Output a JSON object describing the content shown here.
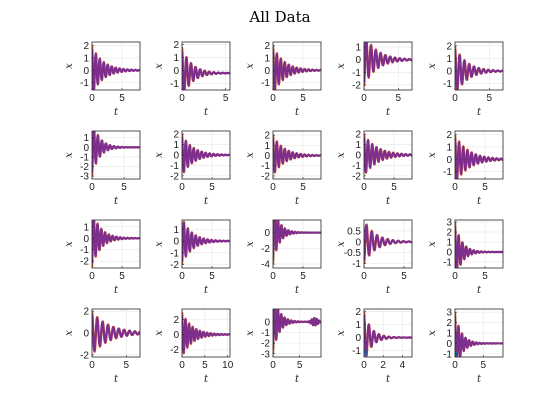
{
  "chart_data": {
    "type": "line",
    "title": "All Data",
    "layout": {
      "rows": 4,
      "cols": 5
    },
    "colors": {
      "series_a": "#D95319",
      "series_b": "#7E2F8E",
      "series_c": "#0072BD",
      "grid": "#e6e6e6",
      "axes": "#262626"
    },
    "grid": true,
    "series_names": [
      "",
      ""
    ],
    "panels": [
      {
        "xlabel": "t",
        "ylabel": "x",
        "xlim": [
          0,
          8
        ],
        "ylim": [
          -1.6,
          2.3
        ],
        "xticks": [
          0,
          5
        ],
        "yticks": [
          -1,
          0,
          1,
          2
        ],
        "y0": 2.0,
        "decay": 0.55,
        "freq": 9.5,
        "offset": 0.0
      },
      {
        "xlabel": "t",
        "ylabel": "x",
        "xlim": [
          0,
          5.5
        ],
        "ylim": [
          -1.5,
          2.2
        ],
        "xticks": [
          0,
          5
        ],
        "yticks": [
          -1,
          0,
          1,
          2
        ],
        "y0": 2.0,
        "decay": 0.9,
        "freq": 12.0,
        "offset": -0.2
      },
      {
        "xlabel": "t",
        "ylabel": "x",
        "xlim": [
          0,
          8
        ],
        "ylim": [
          -1.6,
          2.3
        ],
        "xticks": [
          0,
          5
        ],
        "yticks": [
          -1,
          0,
          1,
          2
        ],
        "y0": 2.0,
        "decay": 0.55,
        "freq": 9.5,
        "offset": 0.0
      },
      {
        "xlabel": "t",
        "ylabel": "x",
        "xlim": [
          0,
          7
        ],
        "ylim": [
          -2.4,
          1.4
        ],
        "xticks": [
          0,
          5
        ],
        "yticks": [
          -2,
          -1,
          0,
          1
        ],
        "y0": -2.1,
        "decay": 0.55,
        "freq": 9.0,
        "offset": 0.0
      },
      {
        "xlabel": "t",
        "ylabel": "x",
        "xlim": [
          0,
          7
        ],
        "ylim": [
          -1.5,
          2.3
        ],
        "xticks": [
          0,
          5
        ],
        "yticks": [
          -1,
          0,
          1,
          2
        ],
        "y0": 2.0,
        "decay": 0.6,
        "freq": 9.0,
        "offset": 0.0
      },
      {
        "xlabel": "t",
        "ylabel": "x",
        "xlim": [
          0,
          7.5
        ],
        "ylim": [
          -3.3,
          1.7
        ],
        "xticks": [
          0,
          5
        ],
        "yticks": [
          -3,
          -2,
          -1,
          0,
          1
        ],
        "y0": -3.0,
        "decay": 0.9,
        "freq": 10.0,
        "offset": 0.0
      },
      {
        "xlabel": "t",
        "ylabel": "x",
        "xlim": [
          0,
          8
        ],
        "ylim": [
          -2.3,
          2.3
        ],
        "xticks": [
          0,
          5
        ],
        "yticks": [
          -2,
          -1,
          0,
          1,
          2
        ],
        "y0": 2.0,
        "decay": 0.55,
        "freq": 9.5,
        "offset": 0.0
      },
      {
        "xlabel": "t",
        "ylabel": "x",
        "xlim": [
          0,
          8
        ],
        "ylim": [
          -2.3,
          2.4
        ],
        "xticks": [
          0,
          5
        ],
        "yticks": [
          -2,
          -1,
          0,
          1,
          2
        ],
        "y0": 2.0,
        "decay": 0.55,
        "freq": 9.5,
        "offset": 0.0
      },
      {
        "xlabel": "t",
        "ylabel": "x",
        "xlim": [
          0,
          8
        ],
        "ylim": [
          -2.3,
          2.3
        ],
        "xticks": [
          0,
          5
        ],
        "yticks": [
          -2,
          -1,
          0,
          1,
          2
        ],
        "y0": 2.0,
        "decay": 0.45,
        "freq": 9.0,
        "offset": 0.0
      },
      {
        "xlabel": "t",
        "ylabel": "x",
        "xlim": [
          0,
          8
        ],
        "ylim": [
          -1.6,
          2.3
        ],
        "xticks": [
          0,
          5
        ],
        "yticks": [
          -1,
          0,
          1,
          2
        ],
        "y0": 2.0,
        "decay": 0.45,
        "freq": 9.0,
        "offset": 0.0
      },
      {
        "xlabel": "t",
        "ylabel": "x",
        "xlim": [
          0,
          8
        ],
        "ylim": [
          -2.6,
          1.6
        ],
        "xticks": [
          0,
          5
        ],
        "yticks": [
          -2,
          -1,
          0,
          1
        ],
        "y0": -2.5,
        "decay": 0.7,
        "freq": 10.0,
        "offset": 0.0
      },
      {
        "xlabel": "t",
        "ylabel": "x",
        "xlim": [
          0,
          8
        ],
        "ylim": [
          -2.3,
          1.8
        ],
        "xticks": [
          0,
          5
        ],
        "yticks": [
          -2,
          -1,
          0,
          1
        ],
        "y0": -2.0,
        "decay": 0.6,
        "freq": 9.5,
        "offset": 0.0
      },
      {
        "xlabel": "t",
        "ylabel": "x",
        "xlim": [
          0,
          8
        ],
        "ylim": [
          -4.5,
          1.6
        ],
        "xticks": [
          0,
          5
        ],
        "yticks": [
          -4,
          -2,
          0
        ],
        "y0": -4.0,
        "decay": 1.0,
        "freq": 11.0,
        "offset": 0.0
      },
      {
        "xlabel": "t",
        "ylabel": "x",
        "xlim": [
          0,
          6
        ],
        "ylim": [
          -1.2,
          1.0
        ],
        "xticks": [
          0,
          5
        ],
        "yticks": [
          -1,
          -0.5,
          0,
          0.5
        ],
        "yticklabels": [
          "-1",
          "-0.5",
          "0",
          "0.5"
        ],
        "y0": -1.0,
        "decay": 0.7,
        "freq": 9.5,
        "offset": 0.0
      },
      {
        "xlabel": "t",
        "ylabel": "x",
        "xlim": [
          0,
          8
        ],
        "ylim": [
          -1.6,
          3.2
        ],
        "xticks": [
          0,
          5
        ],
        "yticks": [
          -1,
          0,
          1,
          2,
          3
        ],
        "y0": 3.0,
        "decay": 0.9,
        "freq": 10.0,
        "offset": 0.0
      },
      {
        "xlabel": "t",
        "ylabel": "x",
        "xlim": [
          0,
          7
        ],
        "ylim": [
          -2.2,
          2.2
        ],
        "xticks": [
          0,
          5
        ],
        "yticks": [
          -2,
          0,
          2
        ],
        "y0": 2.0,
        "decay": 0.4,
        "freq": 8.0,
        "offset": 0.0
      },
      {
        "xlabel": "t",
        "ylabel": "x",
        "xlim": [
          0,
          10.5
        ],
        "ylim": [
          -3.0,
          3.4
        ],
        "xticks": [
          0,
          5,
          10
        ],
        "yticks": [
          -2,
          0,
          2
        ],
        "y0": 3.0,
        "decay": 0.45,
        "freq": 8.0,
        "offset": 0.0
      },
      {
        "xlabel": "t",
        "ylabel": "x",
        "xlim": [
          0,
          9
        ],
        "ylim": [
          -3.3,
          1.2
        ],
        "xticks": [
          0,
          5
        ],
        "yticks": [
          -3,
          -2,
          -1,
          0
        ],
        "y0": -3.0,
        "decay": 0.9,
        "freq": 10.0,
        "offset": 0.0,
        "tail_burst": true
      },
      {
        "xlabel": "t",
        "ylabel": "x",
        "xlim": [
          0,
          5
        ],
        "ylim": [
          -1.5,
          2.2
        ],
        "xticks": [
          0,
          2,
          4
        ],
        "yticks": [
          -1,
          0,
          1,
          2
        ],
        "y0": 2.0,
        "decay": 1.3,
        "freq": 12.0,
        "offset": 0.0,
        "blue_start": true
      },
      {
        "xlabel": "t",
        "ylabel": "x",
        "xlim": [
          0,
          8.5
        ],
        "ylim": [
          -1.3,
          3.3
        ],
        "xticks": [
          0,
          5
        ],
        "yticks": [
          -1,
          0,
          1,
          2,
          3
        ],
        "y0": 3.0,
        "decay": 0.9,
        "freq": 10.0,
        "offset": 0.0,
        "blue_start": true
      }
    ]
  }
}
